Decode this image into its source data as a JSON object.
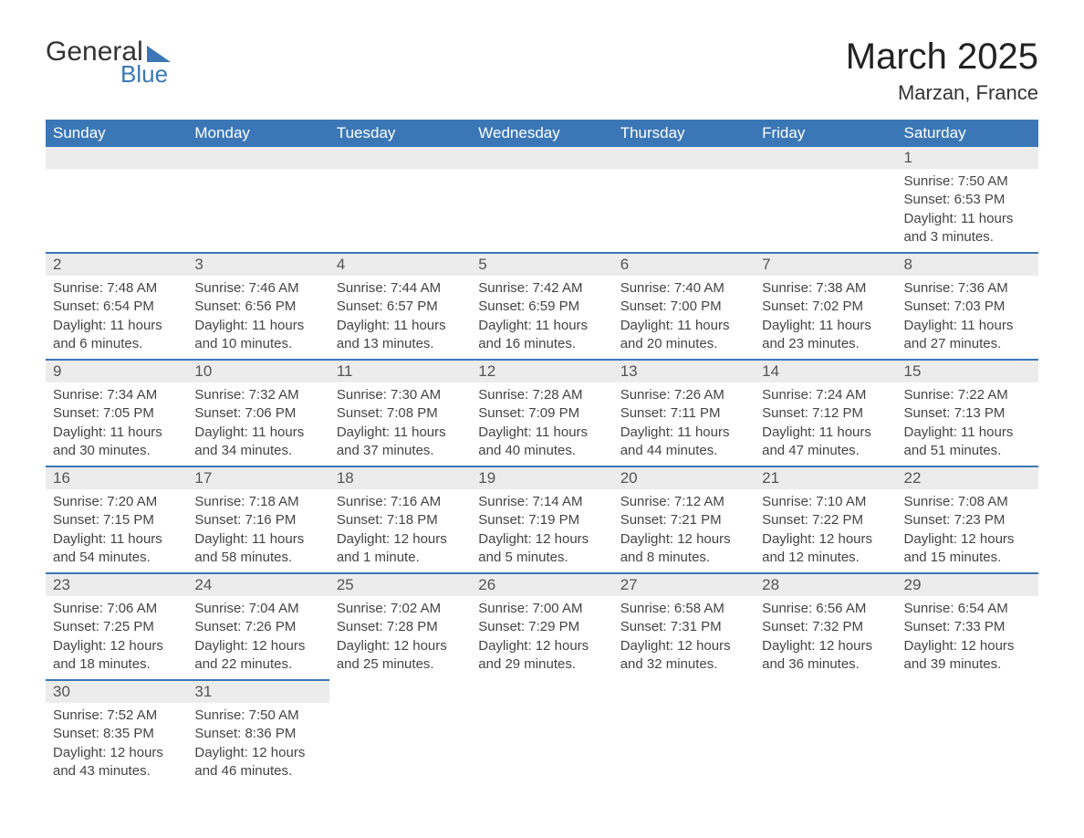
{
  "logo": {
    "word1": "General",
    "word2": "Blue"
  },
  "title": "March 2025",
  "location": "Marzan, France",
  "colors": {
    "header_bg": "#3b77b6",
    "header_text": "#ffffff",
    "daynum_bg": "#ececec",
    "row_divider": "#3b77b6",
    "body_text": "#444444"
  },
  "weekdays": [
    "Sunday",
    "Monday",
    "Tuesday",
    "Wednesday",
    "Thursday",
    "Friday",
    "Saturday"
  ],
  "weeks": [
    [
      null,
      null,
      null,
      null,
      null,
      null,
      {
        "n": "1",
        "sunrise": "7:50 AM",
        "sunset": "6:53 PM",
        "daylight": "11 hours and 3 minutes."
      }
    ],
    [
      {
        "n": "2",
        "sunrise": "7:48 AM",
        "sunset": "6:54 PM",
        "daylight": "11 hours and 6 minutes."
      },
      {
        "n": "3",
        "sunrise": "7:46 AM",
        "sunset": "6:56 PM",
        "daylight": "11 hours and 10 minutes."
      },
      {
        "n": "4",
        "sunrise": "7:44 AM",
        "sunset": "6:57 PM",
        "daylight": "11 hours and 13 minutes."
      },
      {
        "n": "5",
        "sunrise": "7:42 AM",
        "sunset": "6:59 PM",
        "daylight": "11 hours and 16 minutes."
      },
      {
        "n": "6",
        "sunrise": "7:40 AM",
        "sunset": "7:00 PM",
        "daylight": "11 hours and 20 minutes."
      },
      {
        "n": "7",
        "sunrise": "7:38 AM",
        "sunset": "7:02 PM",
        "daylight": "11 hours and 23 minutes."
      },
      {
        "n": "8",
        "sunrise": "7:36 AM",
        "sunset": "7:03 PM",
        "daylight": "11 hours and 27 minutes."
      }
    ],
    [
      {
        "n": "9",
        "sunrise": "7:34 AM",
        "sunset": "7:05 PM",
        "daylight": "11 hours and 30 minutes."
      },
      {
        "n": "10",
        "sunrise": "7:32 AM",
        "sunset": "7:06 PM",
        "daylight": "11 hours and 34 minutes."
      },
      {
        "n": "11",
        "sunrise": "7:30 AM",
        "sunset": "7:08 PM",
        "daylight": "11 hours and 37 minutes."
      },
      {
        "n": "12",
        "sunrise": "7:28 AM",
        "sunset": "7:09 PM",
        "daylight": "11 hours and 40 minutes."
      },
      {
        "n": "13",
        "sunrise": "7:26 AM",
        "sunset": "7:11 PM",
        "daylight": "11 hours and 44 minutes."
      },
      {
        "n": "14",
        "sunrise": "7:24 AM",
        "sunset": "7:12 PM",
        "daylight": "11 hours and 47 minutes."
      },
      {
        "n": "15",
        "sunrise": "7:22 AM",
        "sunset": "7:13 PM",
        "daylight": "11 hours and 51 minutes."
      }
    ],
    [
      {
        "n": "16",
        "sunrise": "7:20 AM",
        "sunset": "7:15 PM",
        "daylight": "11 hours and 54 minutes."
      },
      {
        "n": "17",
        "sunrise": "7:18 AM",
        "sunset": "7:16 PM",
        "daylight": "11 hours and 58 minutes."
      },
      {
        "n": "18",
        "sunrise": "7:16 AM",
        "sunset": "7:18 PM",
        "daylight": "12 hours and 1 minute."
      },
      {
        "n": "19",
        "sunrise": "7:14 AM",
        "sunset": "7:19 PM",
        "daylight": "12 hours and 5 minutes."
      },
      {
        "n": "20",
        "sunrise": "7:12 AM",
        "sunset": "7:21 PM",
        "daylight": "12 hours and 8 minutes."
      },
      {
        "n": "21",
        "sunrise": "7:10 AM",
        "sunset": "7:22 PM",
        "daylight": "12 hours and 12 minutes."
      },
      {
        "n": "22",
        "sunrise": "7:08 AM",
        "sunset": "7:23 PM",
        "daylight": "12 hours and 15 minutes."
      }
    ],
    [
      {
        "n": "23",
        "sunrise": "7:06 AM",
        "sunset": "7:25 PM",
        "daylight": "12 hours and 18 minutes."
      },
      {
        "n": "24",
        "sunrise": "7:04 AM",
        "sunset": "7:26 PM",
        "daylight": "12 hours and 22 minutes."
      },
      {
        "n": "25",
        "sunrise": "7:02 AM",
        "sunset": "7:28 PM",
        "daylight": "12 hours and 25 minutes."
      },
      {
        "n": "26",
        "sunrise": "7:00 AM",
        "sunset": "7:29 PM",
        "daylight": "12 hours and 29 minutes."
      },
      {
        "n": "27",
        "sunrise": "6:58 AM",
        "sunset": "7:31 PM",
        "daylight": "12 hours and 32 minutes."
      },
      {
        "n": "28",
        "sunrise": "6:56 AM",
        "sunset": "7:32 PM",
        "daylight": "12 hours and 36 minutes."
      },
      {
        "n": "29",
        "sunrise": "6:54 AM",
        "sunset": "7:33 PM",
        "daylight": "12 hours and 39 minutes."
      }
    ],
    [
      {
        "n": "30",
        "sunrise": "7:52 AM",
        "sunset": "8:35 PM",
        "daylight": "12 hours and 43 minutes."
      },
      {
        "n": "31",
        "sunrise": "7:50 AM",
        "sunset": "8:36 PM",
        "daylight": "12 hours and 46 minutes."
      },
      null,
      null,
      null,
      null,
      null
    ]
  ],
  "labels": {
    "sunrise": "Sunrise: ",
    "sunset": "Sunset: ",
    "daylight": "Daylight: "
  }
}
